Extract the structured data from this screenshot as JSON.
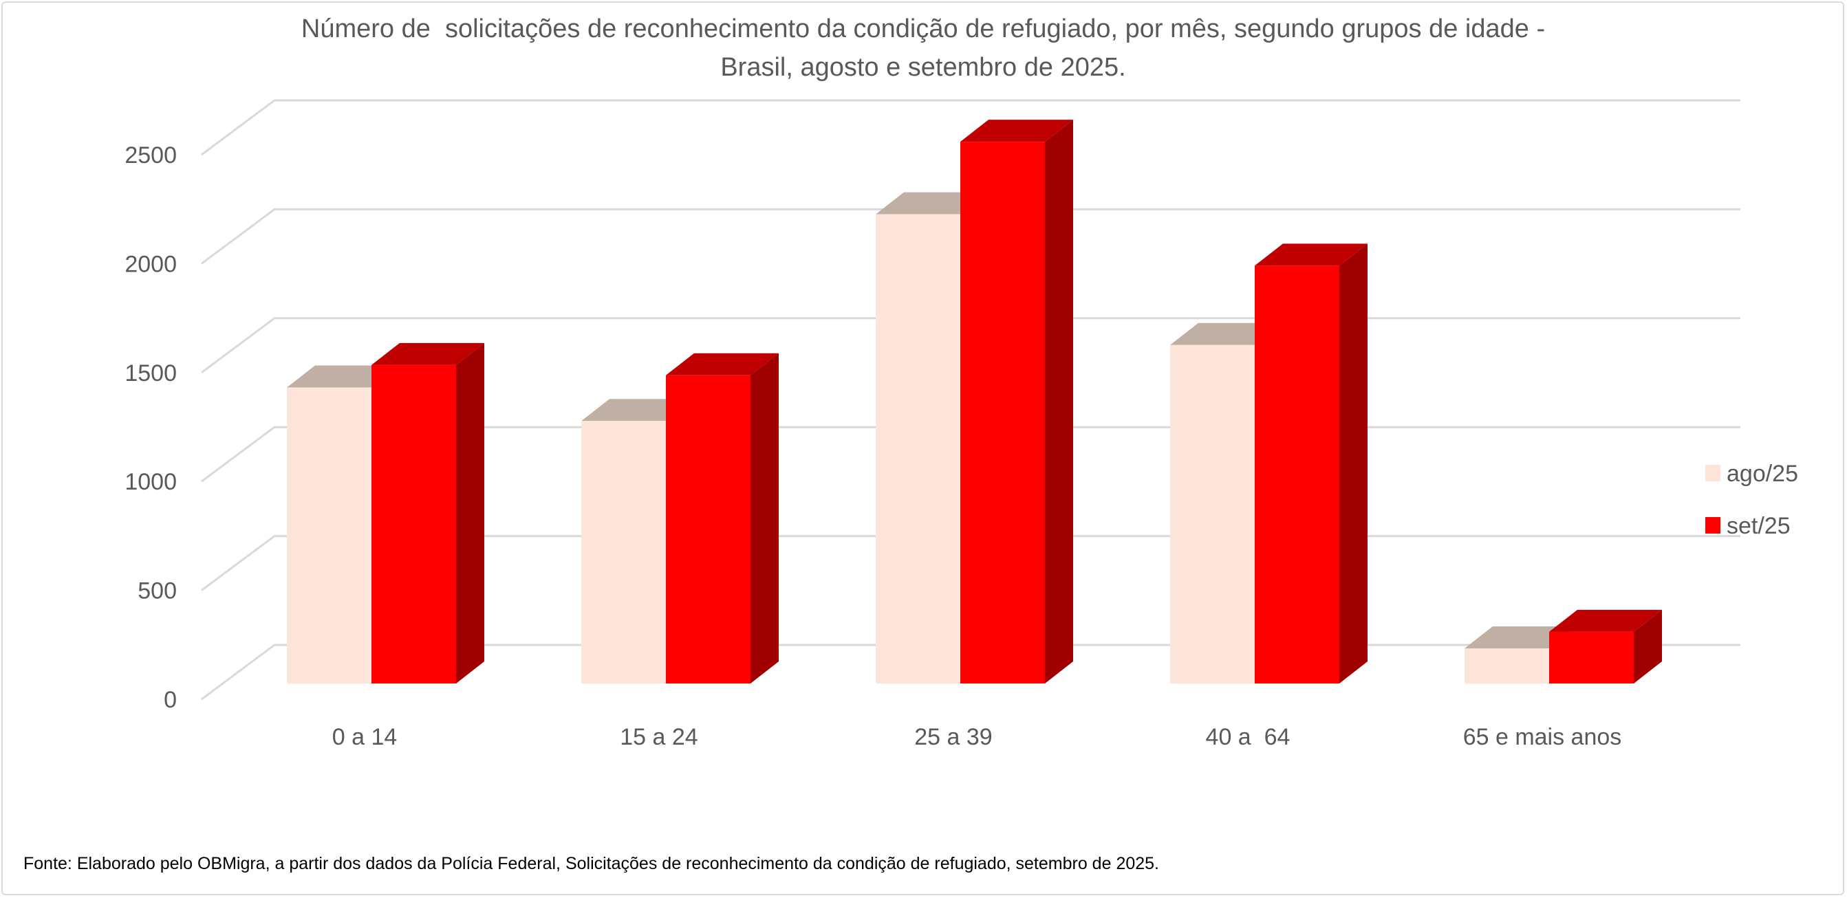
{
  "chart_data": {
    "type": "bar",
    "style": "3d-clustered-column",
    "title": "Número de  solicitações de reconhecimento da condição de refugiado, por mês, segundo grupos de idade - Brasil, agosto e setembro de 2025.",
    "title_lines": [
      "Número de  solicitações de reconhecimento da condição de refugiado, por mês, segundo grupos de idade -",
      "Brasil, agosto e setembro de 2025."
    ],
    "categories": [
      "0 a 14",
      "15 a 24",
      "25 a 39",
      "40 a  64",
      "65 e mais anos"
    ],
    "series": [
      {
        "name": "ago/25",
        "values": [
          1359,
          1205,
          2154,
          1554,
          161
        ],
        "color": "#FDE5DA",
        "top_color": "#C0AFA5"
      },
      {
        "name": "set/25",
        "values": [
          1462,
          1415,
          2487,
          1918,
          237
        ],
        "color": "#FF0000",
        "top_color": "#C00000",
        "side_color": "#A00000"
      }
    ],
    "xlabel": "",
    "ylabel": "",
    "ylim": [
      0,
      2500
    ],
    "yticks": [
      "0",
      "500",
      "1000",
      "1500",
      "2000",
      "2500"
    ],
    "grid": true,
    "gridline_color": "#D9D9D9",
    "legend": "right",
    "source_note": "Fonte: Elaborado pelo OBMigra, a partir dos dados da Polícia Federal, Solicitações de reconhecimento da condição de refugiado, setembro de 2025."
  }
}
